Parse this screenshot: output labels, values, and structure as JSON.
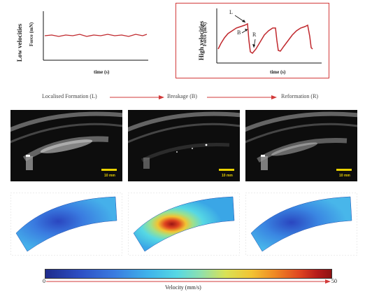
{
  "low": {
    "title": "Low velocities",
    "ylabel": "Force (mN)",
    "xlabel": "time (s)"
  },
  "high": {
    "title": "High velocities",
    "ylabel": "Force (mN)",
    "xlabel": "time (s)",
    "markers": {
      "L": "L",
      "B": "B",
      "R": "R"
    }
  },
  "stages": {
    "formation": "Localised Formation (L)",
    "breakage": "Breakage (B)",
    "reformation": "Reformation (R)"
  },
  "scalebar_label": "10 mm",
  "colorbar": {
    "min": "0",
    "max": "50",
    "label": "Velocity (mm/s)"
  },
  "colors": {
    "line": "#c0282d",
    "frame": "#d23a3a",
    "arrow": "#d23a3a"
  }
}
